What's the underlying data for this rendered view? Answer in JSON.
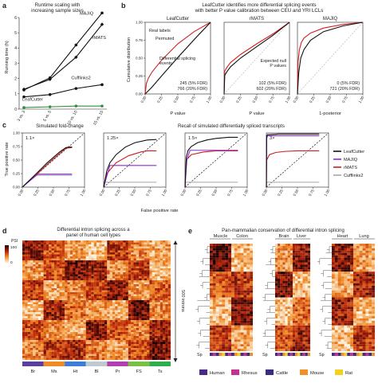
{
  "colors": {
    "leafcutter": "#111111",
    "majiq": "#8e2bd0",
    "rmats": "#c81e1e",
    "cufflinks": "#a5a5a5",
    "permuted": "#111111",
    "real": "#d42020",
    "diag": "#222222",
    "null": "#c8c8c8",
    "heat_low": "#fdf3e1",
    "heat_mid": "#e0531e",
    "heat_high": "#1a0000"
  },
  "panel_a": {
    "letter": "a",
    "title": "Runtime scaling with\nincreasing sample sizes",
    "ylabel": "Running time (h)",
    "labels": {
      "majiq": "MAJIQ",
      "rmats": "rMATS",
      "cufflinks": "Cufflinks2",
      "leafcutter": "LeafCutter"
    },
    "chart_data": {
      "type": "line",
      "categories": [
        "3 vs. 3",
        "5 vs. 5",
        "10 vs. 10",
        "15 vs. 15"
      ],
      "ylim": [
        0,
        6
      ],
      "yticks": [
        "0",
        "1",
        "2",
        "3",
        "4",
        "5",
        "6"
      ],
      "series": [
        {
          "name": "MAJIQ",
          "values": [
            1.25,
            2.05,
            4.2,
            6.3
          ]
        },
        {
          "name": "rMATS",
          "values": [
            1.3,
            1.95,
            3.4,
            5.55
          ]
        },
        {
          "name": "Cufflinks2",
          "values": [
            0.8,
            0.95,
            1.35,
            1.6
          ]
        },
        {
          "name": "LeafCutter",
          "values": [
            0.1,
            0.15,
            0.2,
            0.2
          ]
        }
      ]
    }
  },
  "panel_b": {
    "letter": "b",
    "title": "LeafCutter identifies more differential splicing events\nwith better P value calibration between CEU and YRI LCLs",
    "ylabel": "Cumulative distribution",
    "subplots": [
      {
        "name": "LeafCutter",
        "xlabel": "P value",
        "legend": [
          "Real labels",
          "Permuted"
        ],
        "note": "Differential splicing\nevents",
        "counts": [
          "245 (5% FDR)",
          "766 (20% FDR)"
        ],
        "chart_data": {
          "type": "line",
          "xlim": [
            0,
            1
          ],
          "ylim": [
            0,
            1
          ],
          "xticks": [
            "0.00",
            "0.25",
            "0.50",
            "0.75",
            "1.00"
          ],
          "yticks": [
            "0.00",
            "0.25",
            "0.50",
            "0.75",
            "1.00"
          ],
          "series": [
            {
              "name": "Real labels",
              "x": [
                0,
                0.02,
                0.05,
                0.1,
                0.25,
                0.5,
                0.75,
                1
              ],
              "y": [
                0,
                0.15,
                0.22,
                0.3,
                0.47,
                0.7,
                0.87,
                1
              ]
            },
            {
              "name": "Permuted",
              "x": [
                0,
                0.1,
                0.25,
                0.5,
                0.75,
                1
              ],
              "y": [
                0,
                0.09,
                0.25,
                0.51,
                0.76,
                1
              ]
            }
          ]
        }
      },
      {
        "name": "rMATS",
        "xlabel": "P value",
        "legend": [],
        "note": "Expected null\nP values",
        "counts": [
          "102 (5% FDR)",
          "602 (20% FDR)"
        ],
        "chart_data": {
          "type": "line",
          "xlim": [
            0,
            1
          ],
          "ylim": [
            0,
            1
          ],
          "xticks": [
            "0.00",
            "0.25",
            "0.50",
            "0.75",
            "1.00"
          ],
          "yticks": [],
          "series": [
            {
              "x": [
                0,
                0.01,
                0.05,
                0.1,
                0.25,
                0.5,
                0.75,
                1
              ],
              "y": [
                0,
                0.32,
                0.38,
                0.44,
                0.55,
                0.7,
                0.84,
                1
              ]
            },
            {
              "x": [
                0,
                0.01,
                0.05,
                0.1,
                0.25,
                0.5,
                0.75,
                1
              ],
              "y": [
                0,
                0.26,
                0.32,
                0.38,
                0.5,
                0.66,
                0.82,
                1
              ]
            }
          ]
        }
      },
      {
        "name": "MAJIQ",
        "xlabel": "1-posterior",
        "legend": [],
        "note": "",
        "counts": [
          "0 (5% FDR)",
          "721 (20% FDR)"
        ],
        "chart_data": {
          "type": "line",
          "xlim": [
            0,
            1
          ],
          "ylim": [
            0,
            1
          ],
          "xticks": [
            "0.00",
            "0.25",
            "0.50",
            "0.75",
            "1.00"
          ],
          "yticks": [],
          "series": [
            {
              "x": [
                0,
                0.01,
                0.03,
                0.06,
                0.1,
                0.2,
                0.4,
                0.7,
                1
              ],
              "y": [
                0,
                0.45,
                0.62,
                0.72,
                0.78,
                0.85,
                0.92,
                0.97,
                1
              ]
            },
            {
              "x": [
                0,
                0.02,
                0.05,
                0.1,
                0.2,
                0.4,
                0.7,
                1
              ],
              "y": [
                0,
                0.3,
                0.5,
                0.62,
                0.75,
                0.87,
                0.95,
                1
              ]
            }
          ]
        }
      }
    ]
  },
  "panel_c": {
    "letter": "c",
    "title_left": "Simulated fold-change",
    "title_right": "Recall of simulated differentially spliced transcripts",
    "ylabel": "True positive rate",
    "xlabel": "False positive rate",
    "legend": [
      "LeafCutter",
      "MAJIQ",
      "rMATS",
      "Cufflinks2"
    ],
    "subplots": [
      {
        "name": "1.1×",
        "chart_data": {
          "type": "line",
          "xlim": [
            0,
            1
          ],
          "ylim": [
            0,
            1
          ],
          "xticks": [
            "0.00",
            "0.25",
            "0.50",
            "0.75",
            "1.00"
          ],
          "yticks": [
            "0.00",
            "0.25",
            "0.50",
            "0.75",
            "1.00"
          ],
          "series": [
            {
              "name": "LeafCutter",
              "x": [
                0,
                0.2,
                0.4,
                0.6,
                0.7,
                0.75,
                0.8
              ],
              "y": [
                0,
                0.22,
                0.45,
                0.65,
                0.73,
                0.74,
                0.74
              ]
            },
            {
              "name": "MAJIQ",
              "x": [
                0,
                0.25,
                0.8
              ],
              "y": [
                0,
                0.24,
                0.24
              ]
            },
            {
              "name": "rMATS",
              "x": [
                0,
                0.2,
                0.4,
                0.6,
                0.7,
                0.8
              ],
              "y": [
                0,
                0.2,
                0.42,
                0.62,
                0.72,
                0.73
              ]
            },
            {
              "name": "Cufflinks2",
              "x": [
                0,
                0.2,
                0.8
              ],
              "y": [
                0,
                0.22,
                0.22
              ]
            }
          ]
        }
      },
      {
        "name": "1.25×",
        "chart_data": {
          "type": "line",
          "xlim": [
            0,
            1
          ],
          "ylim": [
            0,
            1
          ],
          "xticks": [
            "0.00",
            "0.25",
            "0.50",
            "0.75",
            "1.00"
          ],
          "yticks": [],
          "series": [
            {
              "name": "LeafCutter",
              "x": [
                0,
                0.05,
                0.1,
                0.2,
                0.35,
                0.5,
                0.7,
                0.85
              ],
              "y": [
                0,
                0.3,
                0.45,
                0.6,
                0.74,
                0.82,
                0.87,
                0.88
              ]
            },
            {
              "name": "MAJIQ",
              "x": [
                0,
                0.05,
                0.1,
                0.85
              ],
              "y": [
                0,
                0.2,
                0.4,
                0.4
              ]
            },
            {
              "name": "rMATS",
              "x": [
                0,
                0.05,
                0.2,
                0.4,
                0.6,
                0.7,
                0.85
              ],
              "y": [
                0,
                0.25,
                0.45,
                0.58,
                0.65,
                0.67,
                0.67
              ]
            },
            {
              "name": "Cufflinks2",
              "x": [
                0,
                0.02,
                0.85
              ],
              "y": [
                0,
                0.09,
                0.09
              ]
            }
          ]
        }
      },
      {
        "name": "1.5×",
        "chart_data": {
          "type": "line",
          "xlim": [
            0,
            1
          ],
          "ylim": [
            0,
            1
          ],
          "xticks": [
            "0.00",
            "0.25",
            "0.50",
            "0.75",
            "1.00"
          ],
          "yticks": [],
          "series": [
            {
              "name": "LeafCutter",
              "x": [
                0,
                0.02,
                0.05,
                0.1,
                0.2,
                0.35,
                0.5,
                0.7,
                0.85
              ],
              "y": [
                0,
                0.55,
                0.68,
                0.75,
                0.82,
                0.87,
                0.9,
                0.92,
                0.92
              ]
            },
            {
              "name": "MAJIQ",
              "x": [
                0,
                0.03,
                0.08,
                0.85
              ],
              "y": [
                0,
                0.5,
                0.68,
                0.68
              ]
            },
            {
              "name": "rMATS",
              "x": [
                0,
                0.02,
                0.1,
                0.3,
                0.5,
                0.85
              ],
              "y": [
                0,
                0.5,
                0.6,
                0.65,
                0.67,
                0.67
              ]
            },
            {
              "name": "Cufflinks2",
              "x": [
                0,
                0.01,
                0.85
              ],
              "y": [
                0,
                0.09,
                0.09
              ]
            }
          ]
        }
      },
      {
        "name": "3×",
        "chart_data": {
          "type": "line",
          "xlim": [
            0,
            1
          ],
          "ylim": [
            0,
            1
          ],
          "xticks": [
            "0.00",
            "0.25",
            "0.50",
            "0.75",
            "1.00"
          ],
          "yticks": [],
          "series": [
            {
              "name": "LeafCutter",
              "x": [
                0,
                0.005,
                0.02,
                0.05,
                0.2,
                0.5,
                0.85
              ],
              "y": [
                0,
                0.95,
                0.97,
                0.97,
                0.98,
                0.98,
                0.98
              ]
            },
            {
              "name": "MAJIQ",
              "x": [
                0,
                0.005,
                0.02,
                0.85
              ],
              "y": [
                0,
                0.9,
                0.95,
                0.95
              ]
            },
            {
              "name": "rMATS",
              "x": [
                0,
                0.005,
                0.05,
                0.15,
                0.3,
                0.5,
                0.85
              ],
              "y": [
                0,
                0.5,
                0.6,
                0.64,
                0.66,
                0.67,
                0.67
              ]
            },
            {
              "name": "Cufflinks2",
              "x": [
                0,
                0.005,
                0.85
              ],
              "y": [
                0,
                0.09,
                0.09
              ]
            }
          ]
        }
      }
    ]
  },
  "panel_d": {
    "letter": "d",
    "title": "Differential intron splicing across a\npanel of human cell types",
    "colorbar_label": "PSI",
    "colorbar_ticks": [
      "100",
      "0"
    ],
    "rows_label": "500 introns",
    "tissues": [
      "Br",
      "Ms",
      "Ht",
      "Bl",
      "Pr",
      "FS",
      "Ts"
    ],
    "tissue_colors": [
      "#5b3f9e",
      "#f08a24",
      "#3d7dd8",
      "#c0c8d0",
      "#b040b0",
      "#7ac143",
      "#2fae4e"
    ],
    "chart_data": {
      "type": "heatmap",
      "rows": 500,
      "columns": [
        "Br",
        "Ms",
        "Ht",
        "Bl",
        "Pr",
        "FS",
        "Ts"
      ],
      "value_range": [
        0,
        100
      ]
    }
  },
  "panel_e": {
    "letter": "e",
    "title": "Pan-mammalian conservation of differential intron splicing",
    "groups": [
      {
        "left": "Muscle",
        "right": "Colon"
      },
      {
        "left": "Brain",
        "right": "Liver"
      },
      {
        "left": "Heart",
        "right": "Lung"
      }
    ],
    "species_label": "Sp",
    "legend": [
      {
        "name": "Human",
        "color": "#4b2a86"
      },
      {
        "name": "Rhesus",
        "color": "#c2338f"
      },
      {
        "name": "Cattle",
        "color": "#3a2d80"
      },
      {
        "name": "Mouse",
        "color": "#f0902a"
      },
      {
        "name": "Rat",
        "color": "#f3d21e"
      }
    ],
    "chart_data": {
      "type": "heatmap",
      "value_range": [
        0,
        100
      ]
    }
  }
}
